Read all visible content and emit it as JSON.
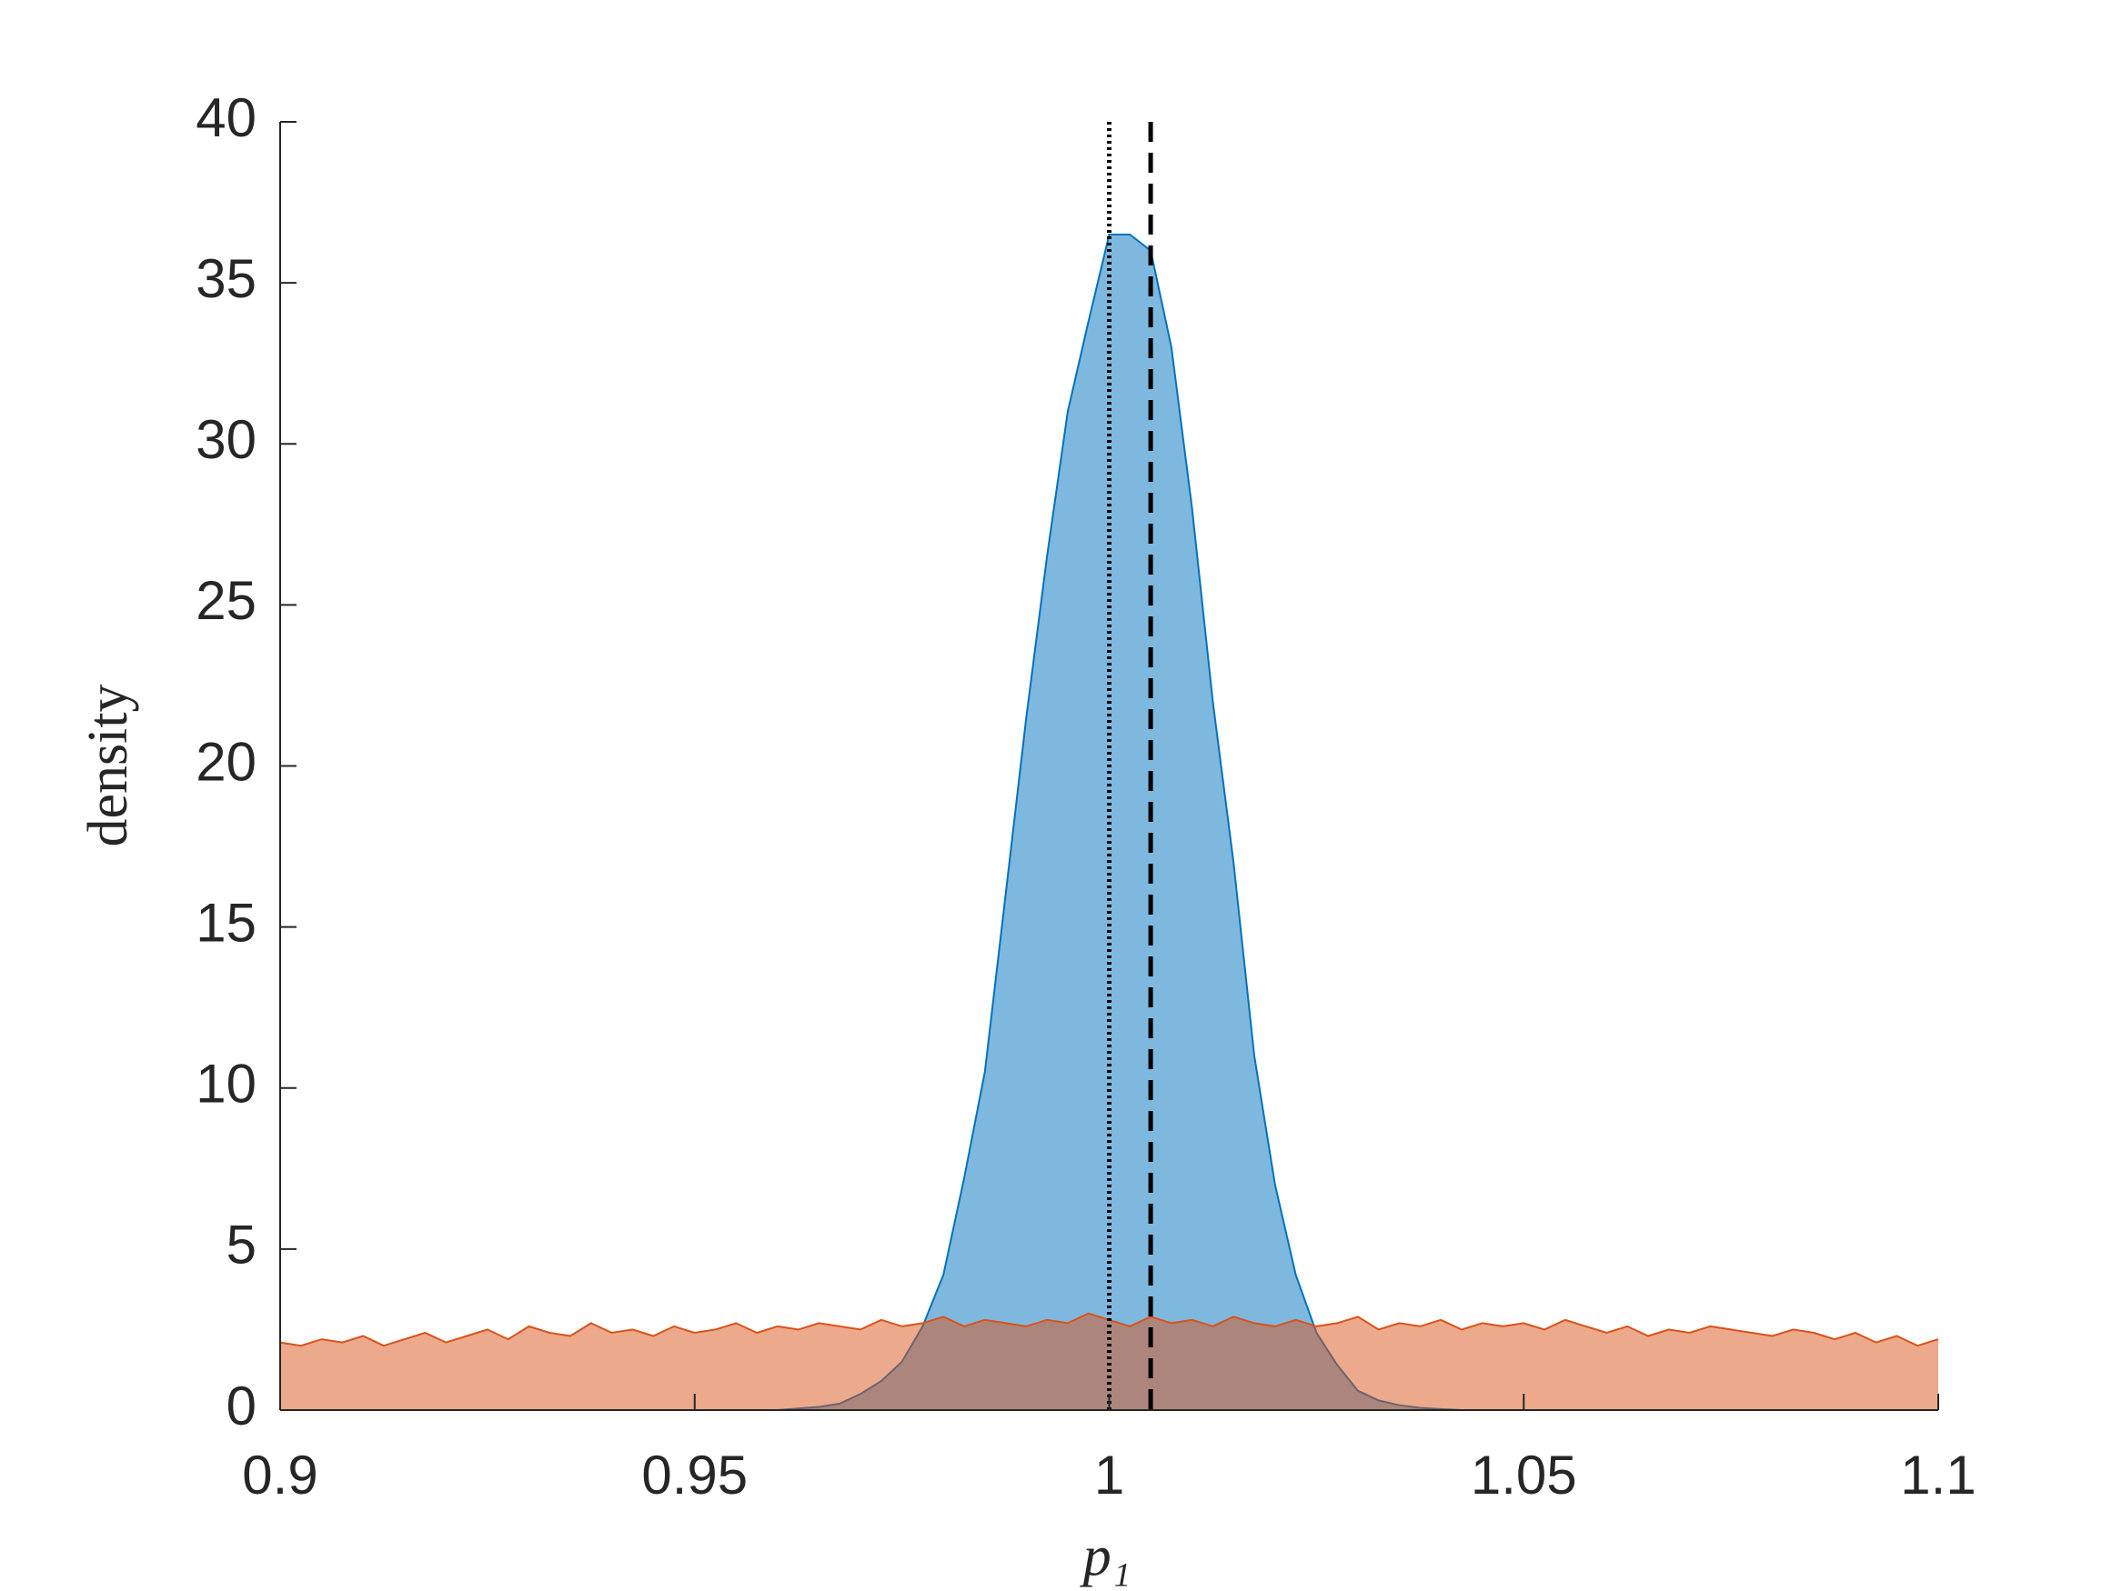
{
  "chart_data": {
    "type": "area",
    "xlabel": "p₁",
    "ylabel": "density",
    "xlim": [
      0.9,
      1.1
    ],
    "ylim": [
      0,
      40
    ],
    "xticks": [
      0.9,
      0.95,
      1,
      1.05,
      1.1
    ],
    "yticks": [
      0,
      5,
      10,
      15,
      20,
      25,
      30,
      35,
      40
    ],
    "x": [
      0.9,
      0.9025,
      0.905,
      0.9075,
      0.91,
      0.9125,
      0.915,
      0.9175,
      0.92,
      0.9225,
      0.925,
      0.9275,
      0.93,
      0.9325,
      0.935,
      0.9375,
      0.94,
      0.9425,
      0.945,
      0.9475,
      0.95,
      0.9525,
      0.955,
      0.9575,
      0.96,
      0.9625,
      0.965,
      0.9675,
      0.97,
      0.9725,
      0.975,
      0.9775,
      0.98,
      0.9825,
      0.985,
      0.9875,
      0.99,
      0.9925,
      0.995,
      0.9975,
      1,
      1.0025,
      1.005,
      1.0075,
      1.01,
      1.0125,
      1.015,
      1.0175,
      1.02,
      1.0225,
      1.025,
      1.0275,
      1.03,
      1.0325,
      1.035,
      1.0375,
      1.04,
      1.0425,
      1.045,
      1.0475,
      1.05,
      1.0525,
      1.055,
      1.0575,
      1.06,
      1.0625,
      1.065,
      1.0675,
      1.07,
      1.0725,
      1.075,
      1.0775,
      1.08,
      1.0825,
      1.085,
      1.0875,
      1.09,
      1.0925,
      1.095,
      1.0975,
      1.1
    ],
    "series": [
      {
        "color": "#0072bd",
        "values": [
          0,
          0,
          0,
          0,
          0,
          0,
          0,
          0,
          0,
          0,
          0,
          0,
          0,
          0,
          0,
          0,
          0,
          0,
          0,
          0,
          0,
          0,
          0,
          0,
          0,
          0.05,
          0.1,
          0.2,
          0.5,
          0.9,
          1.5,
          2.6,
          4.2,
          7.2,
          10.5,
          16,
          21.5,
          26.5,
          31,
          33.8,
          36.5,
          36.5,
          36,
          33,
          28,
          22,
          17,
          11,
          7,
          4.2,
          2.4,
          1.4,
          0.6,
          0.3,
          0.15,
          0.07,
          0.03,
          0,
          0,
          0,
          0,
          0,
          0,
          0,
          0,
          0,
          0,
          0,
          0,
          0,
          0,
          0,
          0,
          0,
          0,
          0,
          0,
          0,
          0,
          0,
          0
        ]
      },
      {
        "color": "#d95319",
        "values": [
          2.1,
          2.0,
          2.2,
          2.1,
          2.3,
          2.0,
          2.2,
          2.4,
          2.1,
          2.3,
          2.5,
          2.2,
          2.6,
          2.4,
          2.3,
          2.7,
          2.4,
          2.5,
          2.3,
          2.6,
          2.4,
          2.5,
          2.7,
          2.4,
          2.6,
          2.5,
          2.7,
          2.6,
          2.5,
          2.8,
          2.6,
          2.7,
          2.9,
          2.6,
          2.8,
          2.7,
          2.6,
          2.8,
          2.7,
          3.0,
          2.8,
          2.6,
          2.9,
          2.7,
          2.8,
          2.6,
          2.9,
          2.7,
          2.6,
          2.8,
          2.6,
          2.7,
          2.9,
          2.5,
          2.7,
          2.6,
          2.8,
          2.5,
          2.7,
          2.6,
          2.7,
          2.5,
          2.8,
          2.6,
          2.4,
          2.6,
          2.3,
          2.5,
          2.4,
          2.6,
          2.5,
          2.4,
          2.3,
          2.5,
          2.4,
          2.2,
          2.4,
          2.1,
          2.3,
          2.0,
          2.2
        ]
      }
    ],
    "reference_lines": [
      {
        "x": 1,
        "style": "dotted",
        "color": "#000000"
      },
      {
        "x": 1.005,
        "style": "dashed",
        "color": "#000000"
      }
    ]
  }
}
